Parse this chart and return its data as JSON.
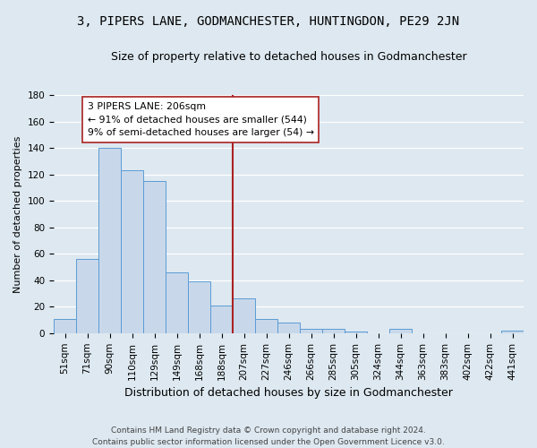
{
  "title": "3, PIPERS LANE, GODMANCHESTER, HUNTINGDON, PE29 2JN",
  "subtitle": "Size of property relative to detached houses in Godmanchester",
  "xlabel": "Distribution of detached houses by size in Godmanchester",
  "ylabel": "Number of detached properties",
  "bar_labels": [
    "51sqm",
    "71sqm",
    "90sqm",
    "110sqm",
    "129sqm",
    "149sqm",
    "168sqm",
    "188sqm",
    "207sqm",
    "227sqm",
    "246sqm",
    "266sqm",
    "285sqm",
    "305sqm",
    "324sqm",
    "344sqm",
    "363sqm",
    "383sqm",
    "402sqm",
    "422sqm",
    "441sqm"
  ],
  "bar_heights": [
    11,
    56,
    140,
    123,
    115,
    46,
    39,
    21,
    26,
    11,
    8,
    3,
    3,
    1,
    0,
    3,
    0,
    0,
    0,
    0,
    2
  ],
  "bar_color": "#c8d8ea",
  "bar_edge_color": "#5b9bd5",
  "vline_x_idx": 8,
  "vline_color": "#aa2222",
  "annotation_text": "3 PIPERS LANE: 206sqm\n← 91% of detached houses are smaller (544)\n9% of semi-detached houses are larger (54) →",
  "annotation_box_color": "#ffffff",
  "annotation_box_edgecolor": "#aa2222",
  "ylim": [
    0,
    180
  ],
  "yticks": [
    0,
    20,
    40,
    60,
    80,
    100,
    120,
    140,
    160,
    180
  ],
  "footer_text": "Contains HM Land Registry data © Crown copyright and database right 2024.\nContains public sector information licensed under the Open Government Licence v3.0.",
  "bg_color": "#dde8f0",
  "plot_bg_color": "#dde8f0",
  "grid_color": "#ffffff",
  "title_fontsize": 10,
  "subtitle_fontsize": 9,
  "xlabel_fontsize": 9,
  "ylabel_fontsize": 8,
  "tick_fontsize": 7.5,
  "footer_fontsize": 6.5
}
